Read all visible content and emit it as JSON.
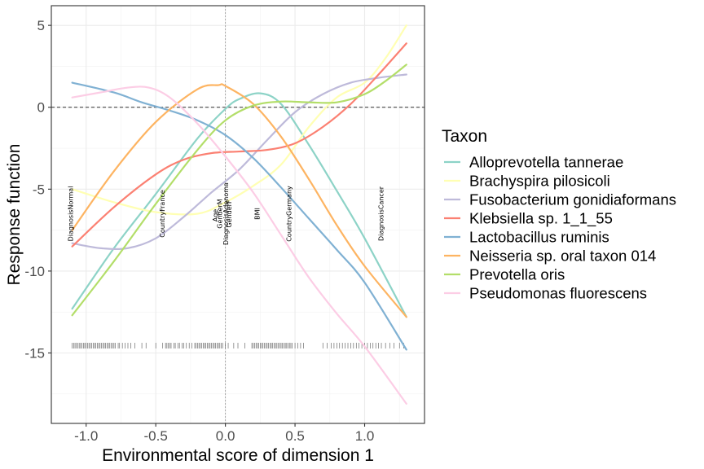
{
  "chart_data": {
    "type": "line",
    "xlabel": "Environmental score of dimension 1",
    "ylabel": "Response function",
    "xlim": [
      -1.25,
      1.43
    ],
    "ylim": [
      -19.3,
      6.2
    ],
    "x_ticks": [
      -1.0,
      -0.5,
      0.0,
      0.5,
      1.0
    ],
    "x_tick_labels": [
      "-1.0",
      "-0.5",
      "0.0",
      "0.5",
      "1.0"
    ],
    "y_ticks": [
      5,
      0,
      -5,
      -10,
      -15
    ],
    "y_tick_labels": [
      "5",
      "0",
      "-5",
      "-10",
      "-15"
    ],
    "grid": true,
    "hline_y": 0,
    "vline_x": 0,
    "legend": {
      "title": "Taxon",
      "position": "right"
    },
    "series": [
      {
        "name": "Alloprevotella tannerae",
        "color": "#8DD3C7",
        "x": [
          -1.1,
          -0.8,
          -0.5,
          -0.2,
          0.0,
          0.1,
          0.25,
          0.4,
          0.6,
          0.8,
          1.0,
          1.3
        ],
        "y": [
          -12.3,
          -8.6,
          -5.3,
          -1.9,
          -0.1,
          0.5,
          0.85,
          0.2,
          -2.3,
          -5.1,
          -8.0,
          -12.8
        ]
      },
      {
        "name": "Brachyspira pilosicoli",
        "color": "#FFFFB3",
        "x": [
          -1.1,
          -0.8,
          -0.5,
          -0.2,
          0.0,
          0.2,
          0.4,
          0.6,
          0.8,
          1.0,
          1.15,
          1.3
        ],
        "y": [
          -5.0,
          -5.8,
          -6.4,
          -6.5,
          -5.8,
          -4.8,
          -3.5,
          -1.2,
          0.6,
          1.5,
          3.0,
          5.0
        ]
      },
      {
        "name": "Fusobacterium gonidiaformans",
        "color": "#BEBADA",
        "x": [
          -1.1,
          -0.9,
          -0.7,
          -0.5,
          -0.3,
          -0.1,
          0.1,
          0.3,
          0.5,
          0.7,
          0.9,
          1.1,
          1.3
        ],
        "y": [
          -8.3,
          -8.6,
          -8.6,
          -8.0,
          -6.7,
          -5.2,
          -3.8,
          -2.0,
          -0.3,
          0.8,
          1.5,
          1.8,
          2.0
        ]
      },
      {
        "name": "Klebsiella sp. 1_1_55",
        "color": "#FB8072",
        "x": [
          -1.1,
          -0.8,
          -0.5,
          -0.3,
          -0.1,
          0.1,
          0.3,
          0.5,
          0.7,
          0.9,
          1.1,
          1.3
        ],
        "y": [
          -8.5,
          -6.1,
          -4.1,
          -3.2,
          -2.8,
          -2.7,
          -2.6,
          -2.2,
          -1.2,
          0.2,
          2.0,
          3.9
        ]
      },
      {
        "name": "Lactobacillus ruminis",
        "color": "#80B1D3",
        "x": [
          -1.1,
          -0.8,
          -0.6,
          -0.4,
          -0.2,
          0.0,
          0.2,
          0.4,
          0.6,
          0.8,
          1.0,
          1.3
        ],
        "y": [
          1.5,
          0.9,
          0.3,
          -0.2,
          -0.8,
          -1.7,
          -3.1,
          -4.9,
          -6.8,
          -8.7,
          -10.7,
          -14.8
        ]
      },
      {
        "name": "Neisseria sp. oral taxon 014",
        "color": "#FDB462",
        "x": [
          -1.1,
          -0.8,
          -0.5,
          -0.2,
          -0.05,
          0.0,
          0.2,
          0.4,
          0.6,
          0.8,
          1.0,
          1.3
        ],
        "y": [
          -7.5,
          -3.9,
          -0.9,
          1.1,
          1.35,
          1.3,
          0.2,
          -1.8,
          -4.4,
          -7.2,
          -9.7,
          -12.8
        ]
      },
      {
        "name": "Prevotella oris",
        "color": "#B3DE69",
        "x": [
          -1.1,
          -0.8,
          -0.5,
          -0.2,
          0.0,
          0.2,
          0.4,
          0.6,
          0.8,
          1.0,
          1.15,
          1.3
        ],
        "y": [
          -12.7,
          -9.4,
          -5.9,
          -2.6,
          -0.8,
          0.1,
          0.35,
          0.3,
          0.3,
          0.8,
          1.6,
          2.6
        ]
      },
      {
        "name": "Pseudomonas fluorescens",
        "color": "#FCCDE5",
        "x": [
          -1.1,
          -0.9,
          -0.7,
          -0.55,
          -0.4,
          -0.2,
          0.0,
          0.2,
          0.4,
          0.6,
          0.8,
          1.0,
          1.3
        ],
        "y": [
          0.6,
          0.9,
          1.2,
          1.2,
          0.6,
          -1.0,
          -3.0,
          -5.2,
          -7.8,
          -10.4,
          -12.6,
          -14.6,
          -18.1
        ]
      }
    ],
    "annotations": [
      {
        "text": "DiagnosisNormal",
        "x": -1.11,
        "y": -6.5
      },
      {
        "text": "CountryFrance",
        "x": -0.45,
        "y": -6.5
      },
      {
        "text": "Age",
        "x": -0.07,
        "y": -6.6
      },
      {
        "text": "GenderM",
        "x": -0.04,
        "y": -6.5
      },
      {
        "text": "DiagnosisAdenoma",
        "x": 0.005,
        "y": -6.5
      },
      {
        "text": "GenderF",
        "x": 0.03,
        "y": -6.5
      },
      {
        "text": "BMI",
        "x": 0.23,
        "y": -6.5
      },
      {
        "text": "CountryGermany",
        "x": 0.46,
        "y": -6.5
      },
      {
        "text": "DiagnosisCancer",
        "x": 1.12,
        "y": -6.5
      }
    ],
    "rug": {
      "y": -14.55,
      "x": [
        -1.1,
        -1.09,
        -1.08,
        -1.07,
        -1.06,
        -1.05,
        -1.04,
        -1.03,
        -1.02,
        -1.01,
        -1.0,
        -0.99,
        -0.98,
        -0.97,
        -0.96,
        -0.95,
        -0.94,
        -0.93,
        -0.92,
        -0.91,
        -0.9,
        -0.89,
        -0.88,
        -0.87,
        -0.86,
        -0.85,
        -0.84,
        -0.83,
        -0.82,
        -0.81,
        -0.8,
        -0.79,
        -0.77,
        -0.76,
        -0.74,
        -0.72,
        -0.7,
        -0.68,
        -0.65,
        -0.6,
        -0.57,
        -0.5,
        -0.45,
        -0.43,
        -0.42,
        -0.41,
        -0.4,
        -0.39,
        -0.37,
        -0.36,
        -0.34,
        -0.33,
        -0.31,
        -0.3,
        -0.28,
        -0.26,
        -0.24,
        -0.22,
        -0.21,
        -0.2,
        -0.19,
        -0.18,
        -0.17,
        -0.16,
        -0.15,
        -0.14,
        -0.13,
        -0.12,
        -0.11,
        -0.1,
        -0.09,
        -0.08,
        -0.07,
        -0.06,
        -0.05,
        -0.04,
        -0.03,
        -0.02,
        0.0,
        0.02,
        0.06,
        0.09,
        0.14,
        0.19,
        0.2,
        0.21,
        0.22,
        0.23,
        0.24,
        0.25,
        0.26,
        0.27,
        0.28,
        0.29,
        0.3,
        0.31,
        0.32,
        0.33,
        0.34,
        0.35,
        0.36,
        0.37,
        0.38,
        0.39,
        0.4,
        0.41,
        0.42,
        0.43,
        0.44,
        0.45,
        0.46,
        0.47,
        0.48,
        0.5,
        0.52,
        0.54,
        0.56,
        0.7,
        0.73,
        0.76,
        0.78,
        0.8,
        0.82,
        0.84,
        0.86,
        0.88,
        0.9,
        0.92,
        0.94,
        0.96,
        0.98,
        1.0,
        1.02,
        1.04,
        1.06,
        1.08,
        1.1,
        1.12,
        1.15,
        1.18,
        1.21,
        1.25,
        1.28
      ]
    }
  }
}
